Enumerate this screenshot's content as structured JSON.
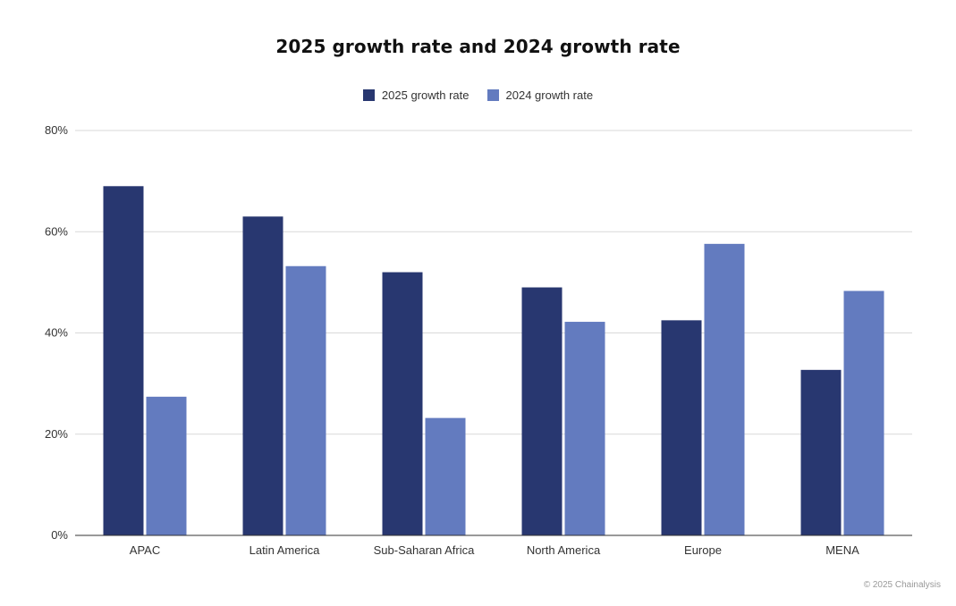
{
  "chart_data": {
    "type": "bar",
    "title": "2025 growth rate and 2024 growth rate",
    "categories": [
      "APAC",
      "Latin America",
      "Sub-Saharan Africa",
      "North America",
      "Europe",
      "MENA"
    ],
    "series": [
      {
        "name": "2025 growth rate",
        "values": [
          69,
          63,
          52,
          49,
          42.5,
          32.7
        ],
        "color": "#283770"
      },
      {
        "name": "2024 growth rate",
        "values": [
          27.4,
          53.2,
          23.2,
          42.2,
          57.6,
          48.3
        ],
        "color": "#637bbf"
      }
    ],
    "xlabel": "",
    "ylabel": "",
    "ylim": [
      0,
      80
    ],
    "yticks": [
      0,
      20,
      40,
      60,
      80
    ],
    "ytick_labels": [
      "0%",
      "20%",
      "40%",
      "60%",
      "80%"
    ],
    "grid": true,
    "legend_position": "top-center"
  },
  "footer": {
    "credit": "© 2025 Chainalysis"
  },
  "colors": {
    "gridline": "#d9d9d9",
    "baseline": "#333333"
  }
}
